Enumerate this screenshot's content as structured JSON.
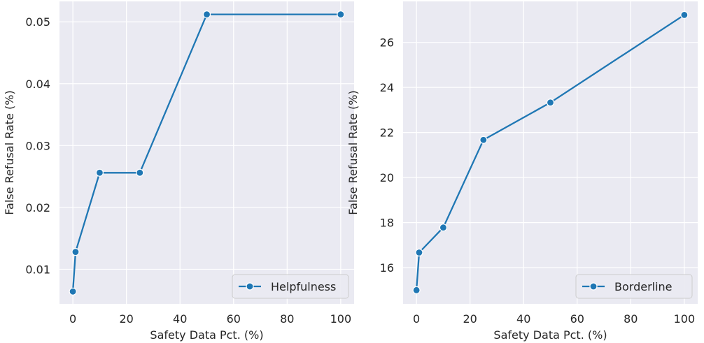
{
  "chart_data": [
    {
      "type": "line",
      "xlabel": "Safety Data Pct. (%)",
      "ylabel": "False Refusal Rate (%)",
      "xlim": [
        -5,
        105
      ],
      "ylim": [
        0.0044,
        0.0533
      ],
      "xticks": [
        0,
        20,
        40,
        60,
        80,
        100
      ],
      "xtick_labels": [
        "0",
        "20",
        "40",
        "60",
        "80",
        "100"
      ],
      "yticks": [
        0.01,
        0.02,
        0.03,
        0.04,
        0.05
      ],
      "ytick_labels": [
        "0.01",
        "0.02",
        "0.03",
        "0.04",
        "0.05"
      ],
      "grid": true,
      "legend_position": "lower-right",
      "series": [
        {
          "name": "Helpfulness",
          "color": "#1f77b4",
          "marker": "circle",
          "x": [
            0,
            1,
            10,
            25,
            50,
            100
          ],
          "y": [
            0.0064,
            0.0128,
            0.0256,
            0.0256,
            0.0512,
            0.0512
          ]
        }
      ]
    },
    {
      "type": "line",
      "xlabel": "Safety Data Pct. (%)",
      "ylabel": "False Refusal Rate (%)",
      "xlim": [
        -5,
        105
      ],
      "ylim": [
        14.39,
        27.82
      ],
      "xticks": [
        0,
        20,
        40,
        60,
        80,
        100
      ],
      "xtick_labels": [
        "0",
        "20",
        "40",
        "60",
        "80",
        "100"
      ],
      "yticks": [
        16,
        18,
        20,
        22,
        24,
        26
      ],
      "ytick_labels": [
        "16",
        "18",
        "20",
        "22",
        "24",
        "26"
      ],
      "grid": true,
      "legend_position": "lower-right",
      "series": [
        {
          "name": "Borderline",
          "color": "#1f77b4",
          "marker": "circle",
          "x": [
            0,
            1,
            10,
            25,
            50,
            100
          ],
          "y": [
            15.0,
            16.67,
            17.78,
            21.67,
            23.33,
            27.22
          ]
        }
      ]
    }
  ]
}
